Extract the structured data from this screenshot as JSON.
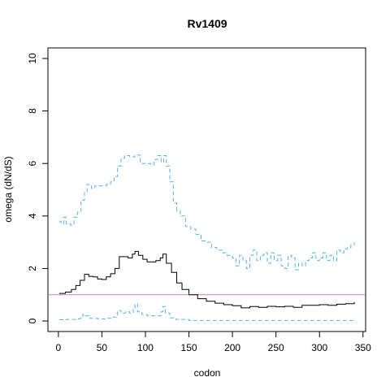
{
  "chart_data": {
    "type": "line",
    "title": "Rv1409",
    "xlabel": "codon",
    "ylabel": "omega (dN/dS)",
    "xlim": [
      -12,
      353
    ],
    "ylim": [
      -0.4,
      10.4
    ],
    "x_ticks": [
      0,
      50,
      100,
      150,
      200,
      250,
      300,
      350
    ],
    "y_ticks": [
      0,
      2,
      4,
      6,
      8,
      10
    ],
    "grid": false,
    "reference_line": {
      "y": 1,
      "color": "#c77cc7"
    },
    "series": [
      {
        "style": "solid",
        "color": "#000000",
        "points": [
          [
            1,
            1.05
          ],
          [
            8,
            1.1
          ],
          [
            15,
            1.2
          ],
          [
            20,
            1.35
          ],
          [
            25,
            1.55
          ],
          [
            30,
            1.78
          ],
          [
            35,
            1.7
          ],
          [
            40,
            1.68
          ],
          [
            45,
            1.6
          ],
          [
            50,
            1.58
          ],
          [
            55,
            1.68
          ],
          [
            60,
            1.8
          ],
          [
            65,
            2.0
          ],
          [
            70,
            2.45
          ],
          [
            75,
            2.45
          ],
          [
            80,
            2.4
          ],
          [
            85,
            2.55
          ],
          [
            88,
            2.65
          ],
          [
            92,
            2.5
          ],
          [
            97,
            2.35
          ],
          [
            102,
            2.25
          ],
          [
            107,
            2.25
          ],
          [
            112,
            2.3
          ],
          [
            117,
            2.4
          ],
          [
            120,
            2.55
          ],
          [
            124,
            2.2
          ],
          [
            130,
            1.85
          ],
          [
            136,
            1.45
          ],
          [
            142,
            1.2
          ],
          [
            150,
            1.0
          ],
          [
            160,
            0.85
          ],
          [
            170,
            0.75
          ],
          [
            180,
            0.68
          ],
          [
            190,
            0.62
          ],
          [
            200,
            0.58
          ],
          [
            210,
            0.5
          ],
          [
            220,
            0.55
          ],
          [
            230,
            0.52
          ],
          [
            240,
            0.56
          ],
          [
            250,
            0.54
          ],
          [
            260,
            0.56
          ],
          [
            270,
            0.52
          ],
          [
            280,
            0.6
          ],
          [
            290,
            0.6
          ],
          [
            300,
            0.62
          ],
          [
            310,
            0.6
          ],
          [
            320,
            0.64
          ],
          [
            330,
            0.66
          ],
          [
            340,
            0.72
          ]
        ]
      },
      {
        "style": "dashed",
        "color": "#56b4e9",
        "points": [
          [
            1,
            3.8
          ],
          [
            3,
            3.7
          ],
          [
            6,
            3.95
          ],
          [
            9,
            3.7
          ],
          [
            14,
            3.65
          ],
          [
            18,
            3.95
          ],
          [
            22,
            4.15
          ],
          [
            26,
            4.6
          ],
          [
            30,
            4.9
          ],
          [
            33,
            5.2
          ],
          [
            38,
            5.05
          ],
          [
            42,
            5.15
          ],
          [
            48,
            5.15
          ],
          [
            55,
            5.2
          ],
          [
            60,
            5.3
          ],
          [
            64,
            5.5
          ],
          [
            68,
            5.9
          ],
          [
            72,
            6.2
          ],
          [
            76,
            6.3
          ],
          [
            82,
            6.25
          ],
          [
            88,
            6.32
          ],
          [
            94,
            6.0
          ],
          [
            100,
            6.0
          ],
          [
            106,
            5.95
          ],
          [
            110,
            6.15
          ],
          [
            114,
            6.3
          ],
          [
            118,
            6.05
          ],
          [
            121,
            6.3
          ],
          [
            124,
            5.9
          ],
          [
            128,
            5.3
          ],
          [
            132,
            4.5
          ],
          [
            136,
            4.2
          ],
          [
            140,
            4.0
          ],
          [
            146,
            3.6
          ],
          [
            152,
            3.5
          ],
          [
            158,
            3.3
          ],
          [
            164,
            3.05
          ],
          [
            170,
            3.0
          ],
          [
            176,
            2.8
          ],
          [
            182,
            2.7
          ],
          [
            188,
            2.6
          ],
          [
            194,
            2.5
          ],
          [
            200,
            2.4
          ],
          [
            204,
            2.1
          ],
          [
            208,
            2.5
          ],
          [
            212,
            2.3
          ],
          [
            216,
            2.0
          ],
          [
            220,
            2.5
          ],
          [
            224,
            2.7
          ],
          [
            228,
            2.3
          ],
          [
            232,
            2.5
          ],
          [
            236,
            2.6
          ],
          [
            240,
            2.2
          ],
          [
            244,
            2.6
          ],
          [
            248,
            2.3
          ],
          [
            252,
            2.5
          ],
          [
            256,
            2.1
          ],
          [
            260,
            2.0
          ],
          [
            264,
            2.5
          ],
          [
            268,
            2.4
          ],
          [
            272,
            1.95
          ],
          [
            276,
            2.2
          ],
          [
            280,
            2.1
          ],
          [
            284,
            2.3
          ],
          [
            288,
            2.4
          ],
          [
            292,
            2.6
          ],
          [
            296,
            2.3
          ],
          [
            300,
            2.4
          ],
          [
            304,
            2.6
          ],
          [
            308,
            2.3
          ],
          [
            312,
            2.5
          ],
          [
            316,
            2.3
          ],
          [
            320,
            2.7
          ],
          [
            324,
            2.6
          ],
          [
            328,
            2.75
          ],
          [
            332,
            2.8
          ],
          [
            336,
            2.9
          ],
          [
            340,
            3.0
          ]
        ]
      },
      {
        "style": "dashed",
        "color": "#56b4e9",
        "points": [
          [
            1,
            0.05
          ],
          [
            10,
            0.06
          ],
          [
            20,
            0.08
          ],
          [
            25,
            0.1
          ],
          [
            28,
            0.25
          ],
          [
            31,
            0.2
          ],
          [
            35,
            0.1
          ],
          [
            45,
            0.08
          ],
          [
            55,
            0.1
          ],
          [
            63,
            0.15
          ],
          [
            68,
            0.4
          ],
          [
            72,
            0.3
          ],
          [
            77,
            0.35
          ],
          [
            82,
            0.3
          ],
          [
            86,
            0.5
          ],
          [
            88,
            0.65
          ],
          [
            91,
            0.35
          ],
          [
            96,
            0.25
          ],
          [
            102,
            0.2
          ],
          [
            108,
            0.2
          ],
          [
            114,
            0.2
          ],
          [
            118,
            0.35
          ],
          [
            120,
            0.55
          ],
          [
            123,
            0.3
          ],
          [
            128,
            0.12
          ],
          [
            135,
            0.06
          ],
          [
            150,
            0.02
          ],
          [
            200,
            0.02
          ],
          [
            250,
            0.02
          ],
          [
            300,
            0.02
          ],
          [
            340,
            0.02
          ]
        ]
      }
    ]
  }
}
